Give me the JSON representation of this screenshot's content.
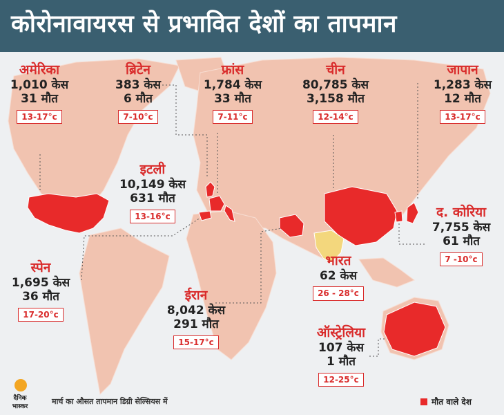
{
  "title": "कोरोनावायरस से प्रभावित देशों का तापमान",
  "countries": [
    {
      "name": "अमेरिका",
      "cases": "1,010 केस",
      "deaths": "31 मौत",
      "temp": "13-17°c"
    },
    {
      "name": "ब्रिटेन",
      "cases": "383 केस",
      "deaths": "6 मौत",
      "temp": "7-10°c"
    },
    {
      "name": "फ्रांस",
      "cases": "1,784 केस",
      "deaths": "33 मौत",
      "temp": "7-11°c"
    },
    {
      "name": "चीन",
      "cases": "80,785 केस",
      "deaths": "3,158 मौत",
      "temp": "12-14°c"
    },
    {
      "name": "जापान",
      "cases": "1,283 केस",
      "deaths": "12 मौत",
      "temp": "13-17°c"
    },
    {
      "name": "इटली",
      "cases": "10,149 केस",
      "deaths": "631 मौत",
      "temp": "13-16°c"
    },
    {
      "name": "द. कोरिया",
      "cases": "7,755 केस",
      "deaths": "61 मौत",
      "temp": "7 -10°c"
    },
    {
      "name": "स्पेन",
      "cases": "1,695 केस",
      "deaths": "36 मौत",
      "temp": "17-20°c"
    },
    {
      "name": "भारत",
      "cases": "62 केस",
      "deaths": "",
      "temp": "26 - 28°c"
    },
    {
      "name": "ईरान",
      "cases": "8,042 केस",
      "deaths": "291 मौत",
      "temp": "15-17°c"
    },
    {
      "name": "ऑस्ट्रेलिया",
      "cases": "107 केस",
      "deaths": "1 मौत",
      "temp": "12-25°c"
    }
  ],
  "footer": {
    "note": "मार्च का औसत तापमान डिग्री सेल्सियस में",
    "legend": "मौत वाले देश"
  },
  "logo": {
    "line1": "दैनिक",
    "line2": "भास्कर"
  },
  "colors": {
    "header": "#3a5f70",
    "land": "#f1c3b0",
    "highlight": "#e82a2a",
    "india": "#f3d77d",
    "label_red": "#d92b2b"
  }
}
